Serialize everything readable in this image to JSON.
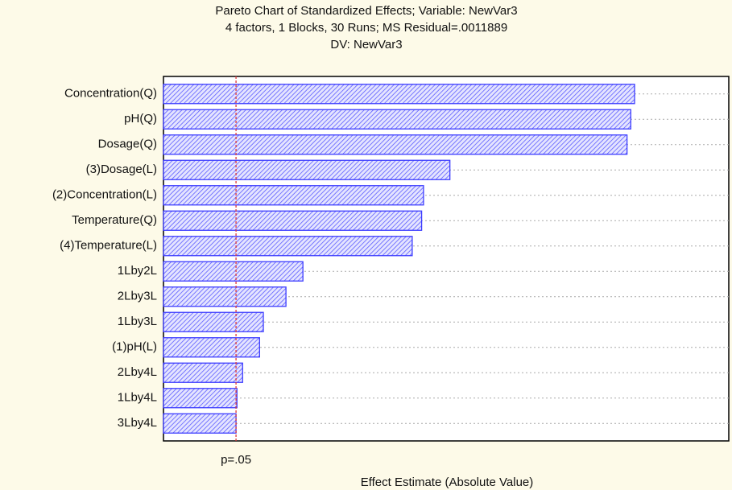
{
  "chart_data": {
    "type": "bar",
    "orientation": "horizontal",
    "title": "Pareto Chart of Standardized Effects; Variable: NewVar3",
    "subtitle": [
      "4 factors, 1 Blocks, 30 Runs; MS Residual=.0011889",
      "DV: NewVar3"
    ],
    "xlabel": "Effect Estimate (Absolute Value)",
    "categories": [
      "Concentration(Q)",
      "pH(Q)",
      "Dosage(Q)",
      "(3)Dosage(L)",
      "(2)Concentration(L)",
      "Temperature(Q)",
      "(4)Temperature(L)",
      "1Lby2L",
      "2Lby3L",
      "1Lby3L",
      "(1)pH(L)",
      "2Lby4L",
      "1Lby4L",
      "3Lby4L"
    ],
    "values": [
      25.0,
      24.8,
      24.6,
      15.2,
      13.8,
      13.7,
      13.2,
      7.4,
      6.5,
      5.3,
      5.1,
      4.2,
      3.9,
      3.85
    ],
    "color": "#3c3cff",
    "xlim": [
      0,
      30
    ],
    "grid": true,
    "reference_line": {
      "value": 3.85,
      "label": "p=.05",
      "color": "#e03a3a"
    }
  }
}
